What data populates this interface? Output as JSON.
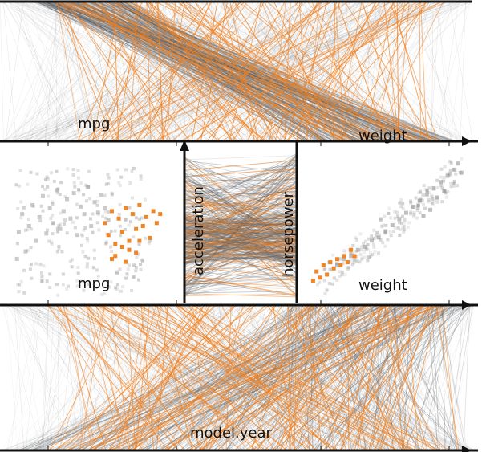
{
  "chart_data": [
    {
      "type": "parallel-coordinates",
      "axes": [
        "mpg",
        "weight"
      ],
      "highlight_color": "#f07f1e",
      "base_color": "#5f6266",
      "series": [
        {
          "name": "gray",
          "lines": [
            [
              0.26,
              0.96
            ],
            [
              0.3,
              0.92
            ],
            [
              0.12,
              0.8
            ],
            [
              0.55,
              0.98
            ]
          ]
        },
        {
          "name": "orange",
          "lines": [
            [
              0.58,
              0.92
            ],
            [
              0.68,
              0.97
            ],
            [
              0.52,
              0.86
            ],
            [
              0.34,
              0.9
            ]
          ]
        }
      ]
    },
    {
      "type": "scatter",
      "xlabel": "mpg",
      "ylabel": "acceleration",
      "series": [
        {
          "name": "gray",
          "color": "#8a8a8a",
          "x": [
            0.05,
            0.06,
            0.08,
            0.1,
            0.12,
            0.14,
            0.16,
            0.18,
            0.2,
            0.22,
            0.24,
            0.26,
            0.28,
            0.3,
            0.32,
            0.34,
            0.36,
            0.38,
            0.4,
            0.42,
            0.44,
            0.46,
            0.48,
            0.5,
            0.52,
            0.54,
            0.56,
            0.58
          ],
          "y": [
            0.28,
            0.46,
            0.58,
            0.33,
            0.5,
            0.64,
            0.4,
            0.56,
            0.7,
            0.45,
            0.62,
            0.52,
            0.74,
            0.48,
            0.6,
            0.68,
            0.55,
            0.72,
            0.44,
            0.63,
            0.58,
            0.76,
            0.5,
            0.66,
            0.59,
            0.71,
            0.62,
            0.54
          ]
        },
        {
          "name": "orange",
          "color": "#f07f1e",
          "x": [
            0.56,
            0.58,
            0.6,
            0.62,
            0.64,
            0.66,
            0.68,
            0.7,
            0.72,
            0.74,
            0.76,
            0.78,
            0.8,
            0.82,
            0.84,
            0.86,
            0.88,
            0.62,
            0.66,
            0.7,
            0.74,
            0.6,
            0.68,
            0.76
          ],
          "y": [
            0.52,
            0.44,
            0.6,
            0.38,
            0.55,
            0.46,
            0.62,
            0.4,
            0.58,
            0.48,
            0.64,
            0.5,
            0.56,
            0.42,
            0.6,
            0.52,
            0.58,
            0.3,
            0.36,
            0.34,
            0.32,
            0.28,
            0.26,
            0.4
          ]
        }
      ],
      "ylim": [
        0,
        1
      ],
      "xlim": [
        0,
        1
      ]
    },
    {
      "type": "scatter",
      "xlabel": "weight",
      "ylabel": "horsepower",
      "series": [
        {
          "name": "gray",
          "color": "#8a8a8a",
          "x": [
            0.2,
            0.24,
            0.28,
            0.32,
            0.36,
            0.4,
            0.44,
            0.48,
            0.52,
            0.56,
            0.6,
            0.64,
            0.68,
            0.72,
            0.76,
            0.8,
            0.84,
            0.88,
            0.9,
            0.92,
            0.7,
            0.74,
            0.78,
            0.82
          ],
          "y": [
            0.24,
            0.28,
            0.3,
            0.34,
            0.36,
            0.4,
            0.42,
            0.46,
            0.5,
            0.54,
            0.58,
            0.62,
            0.66,
            0.7,
            0.74,
            0.78,
            0.82,
            0.86,
            0.9,
            0.84,
            0.56,
            0.6,
            0.68,
            0.72
          ]
        },
        {
          "name": "orange",
          "color": "#f07f1e",
          "x": [
            0.06,
            0.08,
            0.1,
            0.12,
            0.14,
            0.16,
            0.18,
            0.2,
            0.22,
            0.24,
            0.26,
            0.28,
            0.3
          ],
          "y": [
            0.14,
            0.2,
            0.16,
            0.24,
            0.18,
            0.26,
            0.22,
            0.28,
            0.24,
            0.3,
            0.26,
            0.34,
            0.3
          ]
        }
      ],
      "ylim": [
        0,
        1
      ],
      "xlim": [
        0,
        1
      ]
    },
    {
      "type": "parallel-coordinates",
      "axes": [
        "acceleration",
        "horsepower"
      ],
      "series": [
        {
          "name": "gray",
          "lines": [
            [
              0.4,
              0.55
            ],
            [
              0.52,
              0.48
            ],
            [
              0.62,
              0.42
            ],
            [
              0.46,
              0.58
            ]
          ]
        },
        {
          "name": "orange",
          "lines": [
            [
              0.6,
              0.44
            ],
            [
              0.66,
              0.5
            ],
            [
              0.58,
              0.56
            ],
            [
              0.7,
              0.4
            ]
          ]
        }
      ]
    },
    {
      "type": "parallel-coordinates",
      "axes": [
        "mpg",
        "model.year"
      ],
      "series": [
        {
          "name": "gray",
          "lines": [
            [
              0.1,
              0.8
            ],
            [
              0.2,
              0.92
            ],
            [
              0.45,
              0.7
            ],
            [
              0.75,
              0.96
            ]
          ]
        },
        {
          "name": "orange",
          "lines": [
            [
              0.2,
              0.88
            ],
            [
              0.32,
              0.78
            ],
            [
              0.6,
              0.94
            ],
            [
              0.9,
              0.86
            ]
          ]
        }
      ]
    }
  ]
}
